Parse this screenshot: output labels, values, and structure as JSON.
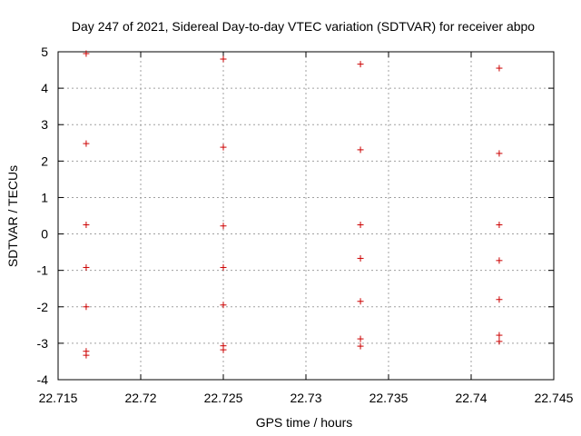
{
  "chart_data": {
    "type": "scatter",
    "title": "Day 247 of 2021, Sidereal Day-to-day VTEC variation (SDTVAR) for receiver abpo",
    "xlabel": "GPS time / hours",
    "ylabel": "SDTVAR / TECUs",
    "xlim": [
      22.715,
      22.745
    ],
    "ylim": [
      -4,
      5
    ],
    "xticks": [
      22.715,
      22.72,
      22.725,
      22.73,
      22.735,
      22.74,
      22.745
    ],
    "xtick_labels": [
      "22.715",
      "22.72",
      "22.725",
      "22.73",
      "22.735",
      "22.74",
      "22.745"
    ],
    "yticks": [
      -4,
      -3,
      -2,
      -1,
      0,
      1,
      2,
      3,
      4,
      5
    ],
    "ytick_labels": [
      "-4",
      "-3",
      "-2",
      "-1",
      "0",
      "1",
      "2",
      "3",
      "4",
      "5"
    ],
    "grid": true,
    "marker": "+",
    "marker_color": "#cc0000",
    "series": [
      {
        "name": "SDTVAR",
        "points": [
          {
            "x": 22.7167,
            "y": 4.95
          },
          {
            "x": 22.7167,
            "y": 2.48
          },
          {
            "x": 22.7167,
            "y": 0.25
          },
          {
            "x": 22.7167,
            "y": -0.92
          },
          {
            "x": 22.7167,
            "y": -2.0
          },
          {
            "x": 22.7167,
            "y": -3.22
          },
          {
            "x": 22.7167,
            "y": -3.33
          },
          {
            "x": 22.725,
            "y": 4.8
          },
          {
            "x": 22.725,
            "y": 2.38
          },
          {
            "x": 22.725,
            "y": 0.22
          },
          {
            "x": 22.725,
            "y": -0.92
          },
          {
            "x": 22.725,
            "y": -1.95
          },
          {
            "x": 22.725,
            "y": -3.07
          },
          {
            "x": 22.725,
            "y": -3.18
          },
          {
            "x": 22.7333,
            "y": 4.66
          },
          {
            "x": 22.7333,
            "y": 2.31
          },
          {
            "x": 22.7333,
            "y": 0.25
          },
          {
            "x": 22.7333,
            "y": -0.67
          },
          {
            "x": 22.7333,
            "y": -1.85
          },
          {
            "x": 22.7333,
            "y": -2.88
          },
          {
            "x": 22.7333,
            "y": -3.08
          },
          {
            "x": 22.7417,
            "y": 4.55
          },
          {
            "x": 22.7417,
            "y": 2.21
          },
          {
            "x": 22.7417,
            "y": 0.25
          },
          {
            "x": 22.7417,
            "y": -0.73
          },
          {
            "x": 22.7417,
            "y": -1.8
          },
          {
            "x": 22.7417,
            "y": -2.78
          },
          {
            "x": 22.7417,
            "y": -2.95
          }
        ]
      }
    ]
  }
}
